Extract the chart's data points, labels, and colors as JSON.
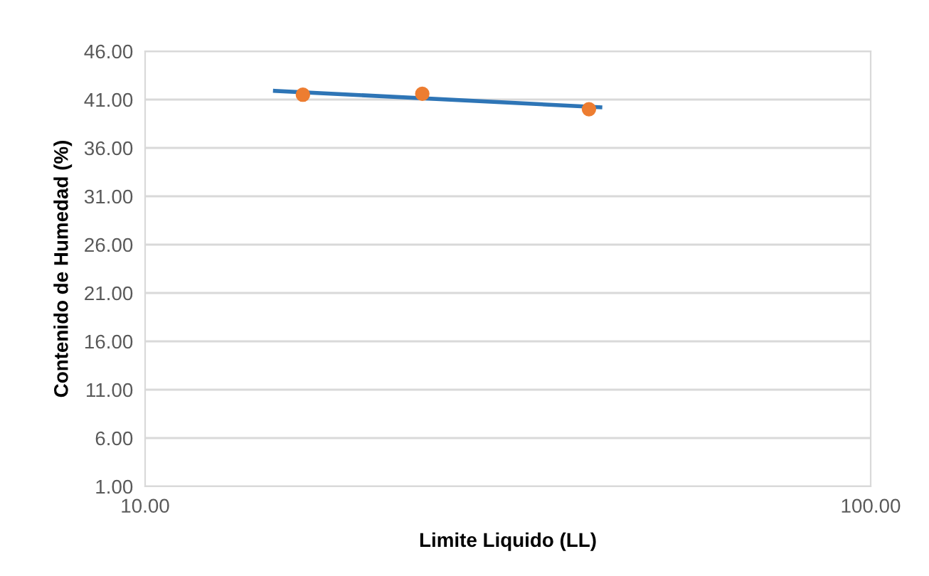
{
  "chart_data": {
    "type": "scatter",
    "xlabel": "Limite Liquido (LL)",
    "ylabel": "Contenido de Humedad (%)",
    "log": "x",
    "xlim": [
      10,
      100
    ],
    "xticks": [
      {
        "value": 10,
        "label": "10.00"
      },
      {
        "value": 100,
        "label": "100.00"
      }
    ],
    "ylim": [
      1,
      46
    ],
    "yticks": [
      {
        "value": 1,
        "label": "1.00"
      },
      {
        "value": 6,
        "label": "6.00"
      },
      {
        "value": 11,
        "label": "11.00"
      },
      {
        "value": 16,
        "label": "16.00"
      },
      {
        "value": 21,
        "label": "21.00"
      },
      {
        "value": 26,
        "label": "26.00"
      },
      {
        "value": 31,
        "label": "31.00"
      },
      {
        "value": 36,
        "label": "36.00"
      },
      {
        "value": 41,
        "label": "41.00"
      },
      {
        "value": 46,
        "label": "46.00"
      }
    ],
    "grid": "y",
    "marker": "circle",
    "series": [
      {
        "color": "#ed7d31",
        "x": [
          16.5,
          24.1,
          40.9
        ],
        "values": [
          41.5,
          41.6,
          40.0
        ]
      },
      {
        "type": "line",
        "color": "#2e75b6",
        "x": [
          15.1,
          42.4
        ],
        "values": [
          41.9,
          40.2
        ],
        "marker": "none"
      }
    ]
  }
}
